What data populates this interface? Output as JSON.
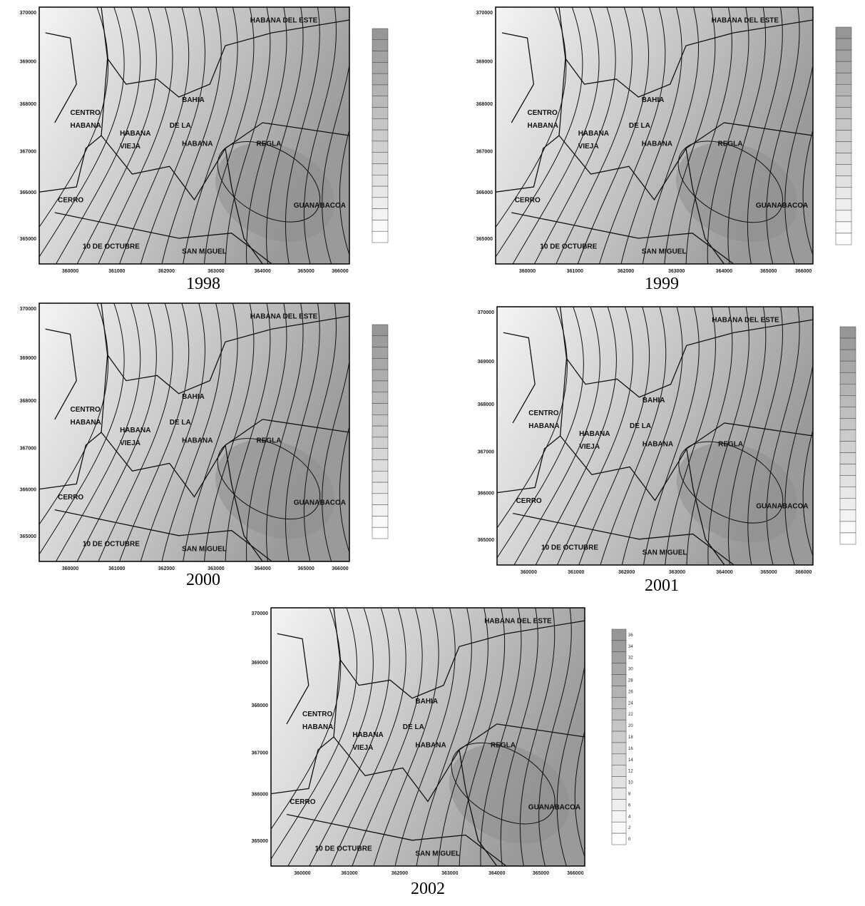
{
  "panels": [
    {
      "year": "1998"
    },
    {
      "year": "1999"
    },
    {
      "year": "2000"
    },
    {
      "year": "2001"
    },
    {
      "year": "2002",
      "legend": [
        "36",
        "34",
        "32",
        "30",
        "28",
        "26",
        "24",
        "22",
        "20",
        "18",
        "16",
        "14",
        "12",
        "10",
        "8",
        "6",
        "4",
        "2",
        "0"
      ]
    }
  ],
  "places": [
    "HABANA DEL ESTE",
    "CENTRO",
    "HABANA",
    "HABANA",
    "VIEJA",
    "BAHIA",
    "DE LA",
    "HABANA",
    "REGLA",
    "CERRO",
    "GUANABACOA",
    "10 DE OCTUBRE",
    "SAN MIGUEL"
  ],
  "x_tick_labels": [
    "360000",
    "361000",
    "362000",
    "363000",
    "364000",
    "365000",
    "366000"
  ],
  "y_tick_labels": [
    "370000",
    "369000",
    "368000",
    "367000",
    "366000",
    "365000"
  ]
}
